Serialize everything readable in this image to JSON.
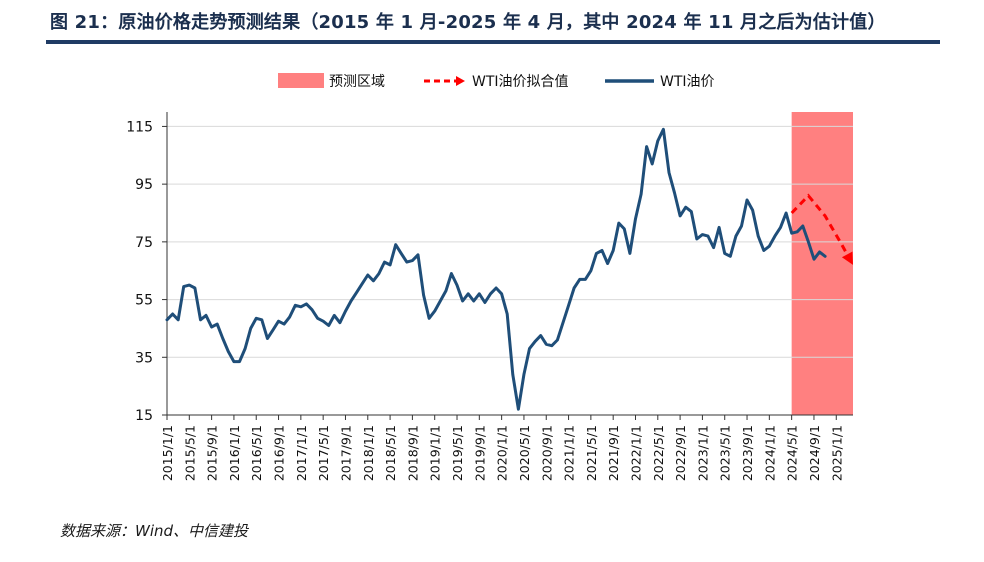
{
  "header": {
    "title": "图 21：原油价格走势预测结果（2015 年 1 月-2025 年 4 月，其中 2024 年 11 月之后为估计值）"
  },
  "footer": {
    "source": "数据来源：Wind、中信建投"
  },
  "colors": {
    "forecast_region": "#ff8080",
    "fit_line": "#ff0000",
    "wti_line": "#1f4e79",
    "title_rule": "#1f3b64"
  },
  "chart_data": {
    "type": "line",
    "title": "原油价格走势预测结果（2015 年 1 月-2025 年 4 月，其中 2024 年 11 月之后为估计值）",
    "xlabel": "",
    "ylabel": "",
    "ylim": [
      15,
      120
    ],
    "yticks": [
      15,
      35,
      55,
      75,
      95,
      115
    ],
    "grid": true,
    "legend": {
      "position": "top",
      "items": [
        {
          "label": "预测区域",
          "style": "region"
        },
        {
          "label": "WTI油价拟合值",
          "style": "dashed-arrow"
        },
        {
          "label": "WTI油价",
          "style": "line"
        }
      ]
    },
    "x_tick_labels": [
      "2015/1/1",
      "2015/5/1",
      "2015/9/1",
      "2016/1/1",
      "2016/5/1",
      "2016/9/1",
      "2017/1/1",
      "2017/5/1",
      "2017/9/1",
      "2018/1/1",
      "2018/5/1",
      "2018/9/1",
      "2019/1/1",
      "2019/5/1",
      "2019/9/1",
      "2020/1/1",
      "2020/5/1",
      "2020/9/1",
      "2021/1/1",
      "2021/5/1",
      "2021/9/1",
      "2022/1/1",
      "2022/5/1",
      "2022/9/1",
      "2023/1/1",
      "2023/5/1",
      "2023/9/1",
      "2024/1/1",
      "2024/5/1",
      "2024/9/1",
      "2025/1/1"
    ],
    "forecast_region": {
      "start": "2024/5/1",
      "end": "2025/4/1"
    },
    "series": [
      {
        "name": "WTI油价",
        "start": "2015/1/1",
        "frequency": "monthly",
        "values": [
          48,
          50,
          48,
          59.5,
          60,
          59,
          48,
          49.5,
          45.5,
          46.5,
          41.5,
          37,
          33.5,
          33.5,
          38,
          45,
          48.5,
          48,
          41.5,
          44.5,
          47.5,
          46.5,
          49,
          53,
          52.5,
          53.5,
          51.5,
          48.5,
          47.5,
          46,
          49.5,
          47,
          51,
          54.5,
          57.5,
          60.5,
          63.5,
          61.5,
          64,
          68,
          67,
          74,
          71,
          68,
          68.5,
          70.5,
          56.5,
          48.5,
          51,
          54.5,
          58,
          64,
          60,
          54.5,
          57,
          54.5,
          57,
          54,
          57,
          59,
          57,
          50,
          29,
          17,
          29,
          38,
          40.5,
          42.5,
          39.5,
          39,
          41,
          47,
          53,
          59,
          62,
          62,
          65,
          71,
          72,
          67.5,
          72,
          81.5,
          79.5,
          71,
          83,
          91.5,
          108,
          102,
          110,
          114,
          99,
          92,
          84,
          87,
          85.5,
          76,
          77.5,
          77,
          73,
          80,
          71,
          70,
          77,
          80.5,
          89.5,
          86,
          77,
          72,
          73.5,
          77,
          80,
          85,
          78,
          78.5,
          80.5,
          75,
          69,
          71.5,
          70
        ]
      },
      {
        "name": "WTI油价拟合值",
        "points": [
          {
            "date": "2024/5/1",
            "value": 85
          },
          {
            "date": "2024/8/1",
            "value": 91
          },
          {
            "date": "2024/11/1",
            "value": 84
          },
          {
            "date": "2025/2/1",
            "value": 74
          },
          {
            "date": "2025/4/1",
            "value": 67
          }
        ]
      }
    ]
  }
}
